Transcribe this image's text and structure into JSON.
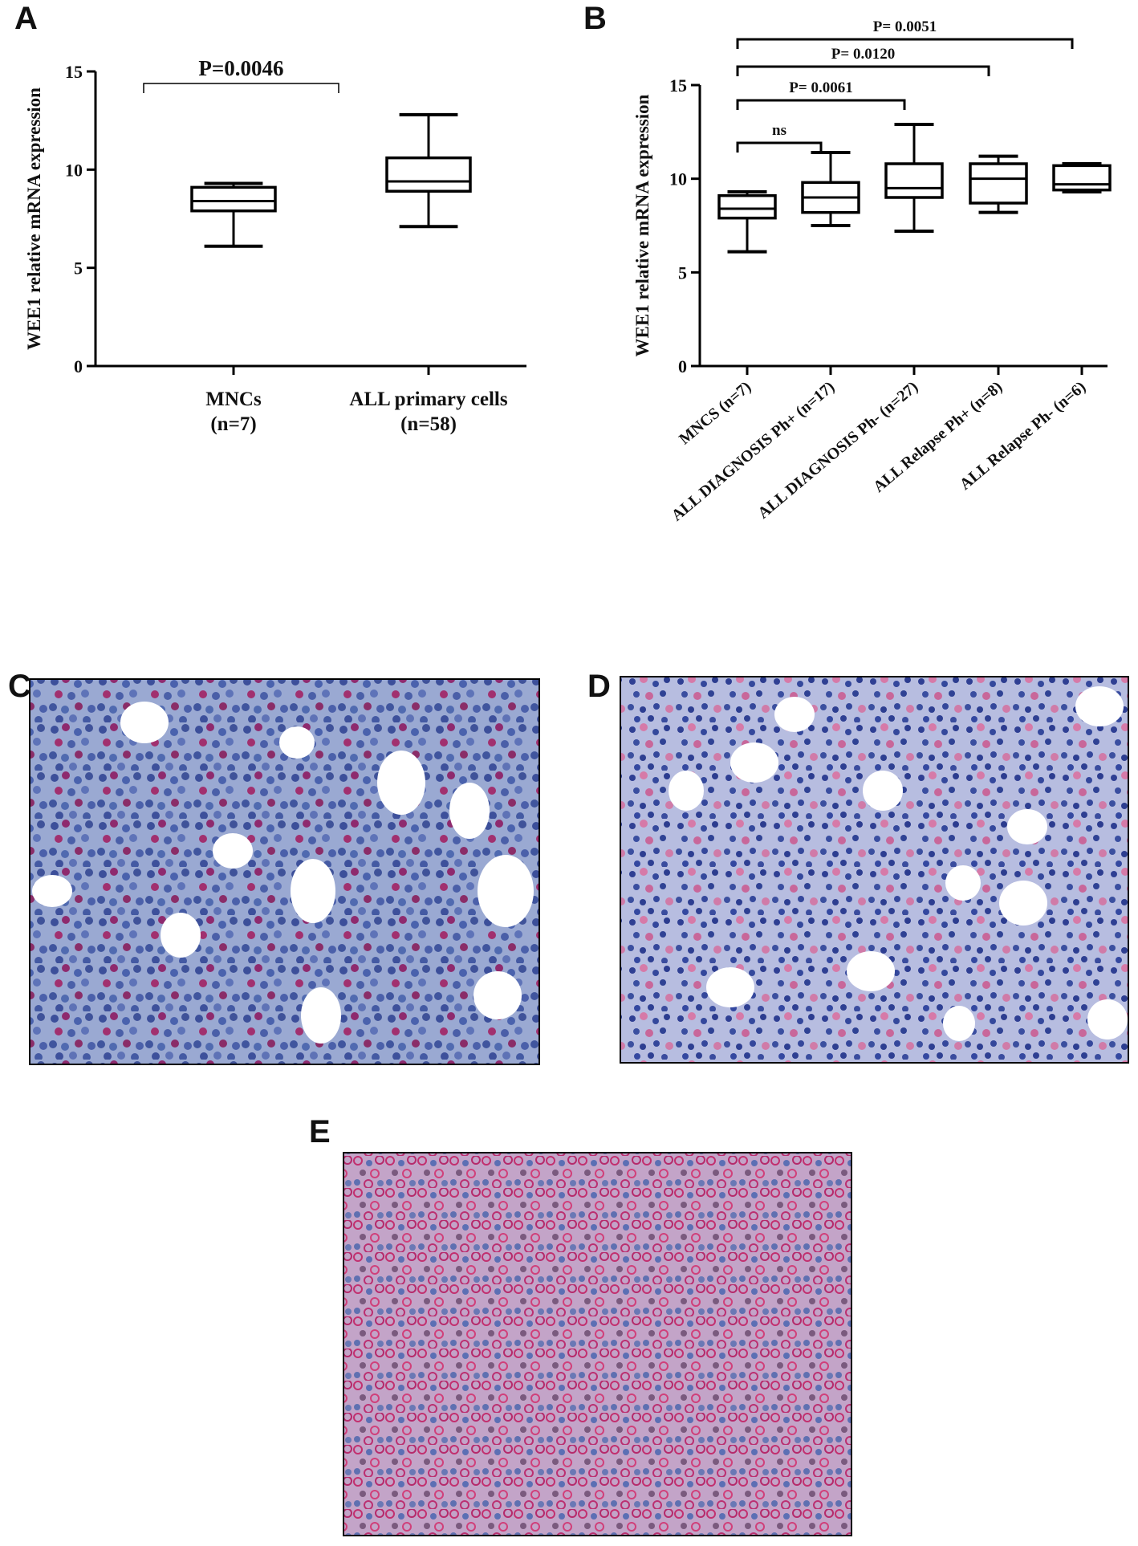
{
  "chart_data": [
    {
      "type": "box",
      "panel": "A",
      "ylabel": "WEE1 relative mRNA expression",
      "categories": [
        "MNCs\n(n=7)",
        "ALL primary cells\n(n=58)"
      ],
      "boxes": [
        {
          "min": 6.1,
          "q1": 7.9,
          "median": 8.4,
          "q3": 9.1,
          "max": 9.3
        },
        {
          "min": 7.1,
          "q1": 8.9,
          "median": 9.4,
          "q3": 10.6,
          "max": 12.8
        }
      ],
      "ylim": [
        0,
        15
      ],
      "yticks": [
        0,
        5,
        10,
        15
      ],
      "annotations": [
        "P=0.0046"
      ]
    },
    {
      "type": "box",
      "panel": "B",
      "ylabel": "WEE1 relative mRNA expression",
      "categories": [
        "MNCS (n=7)",
        "ALL DIAGNOSIS Ph+ (n=17)",
        "ALL DIAGNOSIS Ph- (n=27)",
        "ALL Relapse Ph+ (n=8)",
        "ALL Relapse Ph- (n=6)"
      ],
      "boxes": [
        {
          "min": 6.1,
          "q1": 7.9,
          "median": 8.4,
          "q3": 9.1,
          "max": 9.3
        },
        {
          "min": 7.5,
          "q1": 8.2,
          "median": 9.0,
          "q3": 9.8,
          "max": 11.4
        },
        {
          "min": 7.2,
          "q1": 9.0,
          "median": 9.5,
          "q3": 10.8,
          "max": 12.9
        },
        {
          "min": 8.2,
          "q1": 8.7,
          "median": 10.0,
          "q3": 10.8,
          "max": 11.2
        },
        {
          "min": 9.3,
          "q1": 9.4,
          "median": 9.7,
          "q3": 10.7,
          "max": 10.8
        }
      ],
      "ylim": [
        0,
        15
      ],
      "yticks": [
        0,
        5,
        10,
        15
      ],
      "annotations": [
        "ns",
        "P= 0.0061",
        "P= 0.0120",
        "P= 0.0051"
      ]
    }
  ],
  "image_panels": [
    "C",
    "D",
    "E"
  ]
}
